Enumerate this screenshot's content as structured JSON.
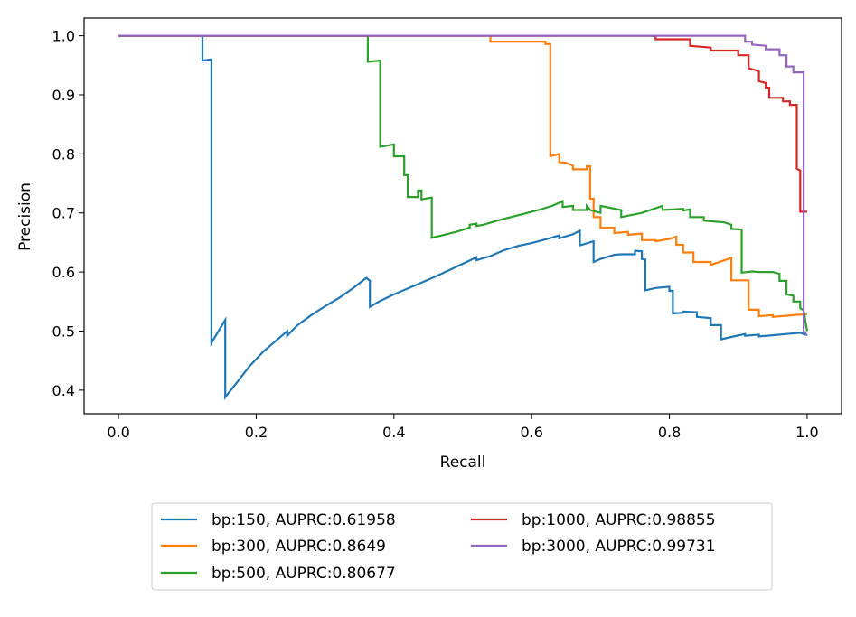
{
  "chart_data": {
    "type": "line",
    "title": "",
    "xlabel": "Recall",
    "ylabel": "Precision",
    "xlim": [
      -0.05,
      1.05
    ],
    "ylim": [
      0.36,
      1.03
    ],
    "x_ticks": [
      0.0,
      0.2,
      0.4,
      0.6,
      0.8,
      1.0
    ],
    "x_tick_labels": [
      "0.0",
      "0.2",
      "0.4",
      "0.6",
      "0.8",
      "1.0"
    ],
    "y_ticks": [
      0.4,
      0.5,
      0.6,
      0.7,
      0.8,
      0.9,
      1.0
    ],
    "y_tick_labels": [
      "0.4",
      "0.5",
      "0.6",
      "0.7",
      "0.8",
      "0.9",
      "1.0"
    ],
    "grid": false,
    "legend_position": "below plot, two columns",
    "series": [
      {
        "name": "bp:150, AUPRC:0.61958",
        "color": "#1f77b4",
        "points": [
          [
            0.0,
            1.0
          ],
          [
            0.122,
            1.0
          ],
          [
            0.122,
            0.958
          ],
          [
            0.135,
            0.96
          ],
          [
            0.135,
            0.48
          ],
          [
            0.155,
            0.519
          ],
          [
            0.155,
            0.388
          ],
          [
            0.17,
            0.41
          ],
          [
            0.19,
            0.44
          ],
          [
            0.21,
            0.465
          ],
          [
            0.23,
            0.485
          ],
          [
            0.245,
            0.5
          ],
          [
            0.245,
            0.492
          ],
          [
            0.26,
            0.51
          ],
          [
            0.28,
            0.527
          ],
          [
            0.3,
            0.542
          ],
          [
            0.32,
            0.556
          ],
          [
            0.34,
            0.572
          ],
          [
            0.36,
            0.59
          ],
          [
            0.365,
            0.585
          ],
          [
            0.365,
            0.541
          ],
          [
            0.38,
            0.551
          ],
          [
            0.4,
            0.562
          ],
          [
            0.42,
            0.572
          ],
          [
            0.44,
            0.582
          ],
          [
            0.46,
            0.592
          ],
          [
            0.48,
            0.603
          ],
          [
            0.5,
            0.614
          ],
          [
            0.52,
            0.625
          ],
          [
            0.52,
            0.62
          ],
          [
            0.54,
            0.627
          ],
          [
            0.56,
            0.637
          ],
          [
            0.58,
            0.644
          ],
          [
            0.6,
            0.649
          ],
          [
            0.62,
            0.655
          ],
          [
            0.64,
            0.662
          ],
          [
            0.64,
            0.657
          ],
          [
            0.66,
            0.664
          ],
          [
            0.67,
            0.67
          ],
          [
            0.67,
            0.645
          ],
          [
            0.69,
            0.652
          ],
          [
            0.69,
            0.617
          ],
          [
            0.7,
            0.622
          ],
          [
            0.72,
            0.629
          ],
          [
            0.73,
            0.63
          ],
          [
            0.75,
            0.63
          ],
          [
            0.75,
            0.636
          ],
          [
            0.76,
            0.635
          ],
          [
            0.76,
            0.622
          ],
          [
            0.765,
            0.621
          ],
          [
            0.765,
            0.569
          ],
          [
            0.78,
            0.573
          ],
          [
            0.8,
            0.575
          ],
          [
            0.8,
            0.568
          ],
          [
            0.805,
            0.568
          ],
          [
            0.805,
            0.53
          ],
          [
            0.82,
            0.531
          ],
          [
            0.82,
            0.533
          ],
          [
            0.84,
            0.532
          ],
          [
            0.84,
            0.524
          ],
          [
            0.86,
            0.522
          ],
          [
            0.86,
            0.51
          ],
          [
            0.875,
            0.51
          ],
          [
            0.875,
            0.486
          ],
          [
            0.89,
            0.49
          ],
          [
            0.91,
            0.495
          ],
          [
            0.91,
            0.492
          ],
          [
            0.93,
            0.494
          ],
          [
            0.93,
            0.491
          ],
          [
            0.95,
            0.493
          ],
          [
            0.97,
            0.495
          ],
          [
            0.99,
            0.497
          ],
          [
            1.0,
            0.493
          ]
        ]
      },
      {
        "name": "bp:300, AUPRC:0.8649",
        "color": "#ff7f0e",
        "points": [
          [
            0.0,
            1.0
          ],
          [
            0.54,
            1.0
          ],
          [
            0.54,
            0.99
          ],
          [
            0.57,
            0.99
          ],
          [
            0.62,
            0.99
          ],
          [
            0.62,
            0.986
          ],
          [
            0.627,
            0.986
          ],
          [
            0.627,
            0.796
          ],
          [
            0.64,
            0.8
          ],
          [
            0.64,
            0.786
          ],
          [
            0.65,
            0.785
          ],
          [
            0.66,
            0.78
          ],
          [
            0.66,
            0.774
          ],
          [
            0.68,
            0.774
          ],
          [
            0.68,
            0.779
          ],
          [
            0.685,
            0.779
          ],
          [
            0.685,
            0.724
          ],
          [
            0.69,
            0.724
          ],
          [
            0.69,
            0.693
          ],
          [
            0.7,
            0.693
          ],
          [
            0.7,
            0.675
          ],
          [
            0.72,
            0.675
          ],
          [
            0.72,
            0.666
          ],
          [
            0.74,
            0.668
          ],
          [
            0.74,
            0.663
          ],
          [
            0.76,
            0.665
          ],
          [
            0.76,
            0.654
          ],
          [
            0.78,
            0.654
          ],
          [
            0.78,
            0.652
          ],
          [
            0.8,
            0.656
          ],
          [
            0.81,
            0.66
          ],
          [
            0.81,
            0.646
          ],
          [
            0.82,
            0.646
          ],
          [
            0.82,
            0.633
          ],
          [
            0.835,
            0.633
          ],
          [
            0.835,
            0.617
          ],
          [
            0.86,
            0.617
          ],
          [
            0.86,
            0.612
          ],
          [
            0.89,
            0.624
          ],
          [
            0.89,
            0.586
          ],
          [
            0.91,
            0.586
          ],
          [
            0.91,
            0.586
          ],
          [
            0.915,
            0.586
          ],
          [
            0.915,
            0.536
          ],
          [
            0.93,
            0.536
          ],
          [
            0.93,
            0.525
          ],
          [
            0.95,
            0.527
          ],
          [
            0.95,
            0.524
          ],
          [
            0.97,
            0.526
          ],
          [
            0.99,
            0.528
          ],
          [
            1.0,
            0.528
          ]
        ]
      },
      {
        "name": "bp:500, AUPRC:0.80677",
        "color": "#2ca02c",
        "points": [
          [
            0.0,
            1.0
          ],
          [
            0.362,
            1.0
          ],
          [
            0.362,
            0.956
          ],
          [
            0.38,
            0.958
          ],
          [
            0.38,
            0.812
          ],
          [
            0.4,
            0.816
          ],
          [
            0.4,
            0.796
          ],
          [
            0.41,
            0.796
          ],
          [
            0.415,
            0.796
          ],
          [
            0.415,
            0.764
          ],
          [
            0.42,
            0.764
          ],
          [
            0.42,
            0.727
          ],
          [
            0.435,
            0.727
          ],
          [
            0.435,
            0.738
          ],
          [
            0.44,
            0.738
          ],
          [
            0.44,
            0.723
          ],
          [
            0.455,
            0.726
          ],
          [
            0.455,
            0.658
          ],
          [
            0.47,
            0.662
          ],
          [
            0.49,
            0.668
          ],
          [
            0.51,
            0.675
          ],
          [
            0.51,
            0.68
          ],
          [
            0.52,
            0.682
          ],
          [
            0.52,
            0.678
          ],
          [
            0.53,
            0.68
          ],
          [
            0.55,
            0.687
          ],
          [
            0.57,
            0.693
          ],
          [
            0.59,
            0.699
          ],
          [
            0.61,
            0.705
          ],
          [
            0.63,
            0.712
          ],
          [
            0.645,
            0.72
          ],
          [
            0.645,
            0.71
          ],
          [
            0.66,
            0.712
          ],
          [
            0.66,
            0.705
          ],
          [
            0.68,
            0.705
          ],
          [
            0.68,
            0.712
          ],
          [
            0.685,
            0.705
          ],
          [
            0.7,
            0.7
          ],
          [
            0.7,
            0.712
          ],
          [
            0.73,
            0.705
          ],
          [
            0.73,
            0.693
          ],
          [
            0.76,
            0.7
          ],
          [
            0.79,
            0.712
          ],
          [
            0.79,
            0.705
          ],
          [
            0.82,
            0.707
          ],
          [
            0.82,
            0.704
          ],
          [
            0.83,
            0.706
          ],
          [
            0.83,
            0.693
          ],
          [
            0.85,
            0.693
          ],
          [
            0.85,
            0.687
          ],
          [
            0.88,
            0.684
          ],
          [
            0.89,
            0.68
          ],
          [
            0.89,
            0.673
          ],
          [
            0.905,
            0.672
          ],
          [
            0.905,
            0.599
          ],
          [
            0.92,
            0.601
          ],
          [
            0.93,
            0.6
          ],
          [
            0.94,
            0.6
          ],
          [
            0.95,
            0.6
          ],
          [
            0.96,
            0.597
          ],
          [
            0.96,
            0.585
          ],
          [
            0.97,
            0.585
          ],
          [
            0.97,
            0.562
          ],
          [
            0.98,
            0.56
          ],
          [
            0.98,
            0.55
          ],
          [
            0.99,
            0.55
          ],
          [
            0.99,
            0.539
          ],
          [
            0.995,
            0.535
          ],
          [
            1.0,
            0.5
          ]
        ]
      },
      {
        "name": "bp:1000, AUPRC:0.98855",
        "color": "#d62728",
        "points": [
          [
            0.0,
            1.0
          ],
          [
            0.78,
            1.0
          ],
          [
            0.78,
            0.994
          ],
          [
            0.83,
            0.994
          ],
          [
            0.83,
            0.983
          ],
          [
            0.86,
            0.98
          ],
          [
            0.86,
            0.975
          ],
          [
            0.9,
            0.975
          ],
          [
            0.9,
            0.967
          ],
          [
            0.915,
            0.967
          ],
          [
            0.915,
            0.945
          ],
          [
            0.93,
            0.94
          ],
          [
            0.93,
            0.923
          ],
          [
            0.94,
            0.92
          ],
          [
            0.94,
            0.912
          ],
          [
            0.945,
            0.912
          ],
          [
            0.945,
            0.895
          ],
          [
            0.965,
            0.895
          ],
          [
            0.965,
            0.889
          ],
          [
            0.975,
            0.889
          ],
          [
            0.975,
            0.883
          ],
          [
            0.985,
            0.883
          ],
          [
            0.985,
            0.775
          ],
          [
            0.99,
            0.772
          ],
          [
            0.99,
            0.702
          ],
          [
            1.0,
            0.702
          ]
        ]
      },
      {
        "name": "bp:3000, AUPRC:0.99731",
        "color": "#9467bd",
        "points": [
          [
            0.0,
            1.0
          ],
          [
            0.91,
            1.0
          ],
          [
            0.91,
            0.99
          ],
          [
            0.92,
            0.99
          ],
          [
            0.92,
            0.985
          ],
          [
            0.94,
            0.983
          ],
          [
            0.94,
            0.977
          ],
          [
            0.96,
            0.977
          ],
          [
            0.96,
            0.967
          ],
          [
            0.97,
            0.967
          ],
          [
            0.97,
            0.948
          ],
          [
            0.98,
            0.948
          ],
          [
            0.98,
            0.938
          ],
          [
            0.99,
            0.938
          ],
          [
            0.995,
            0.938
          ],
          [
            0.995,
            0.5
          ],
          [
            1.0,
            0.493
          ]
        ]
      }
    ]
  }
}
